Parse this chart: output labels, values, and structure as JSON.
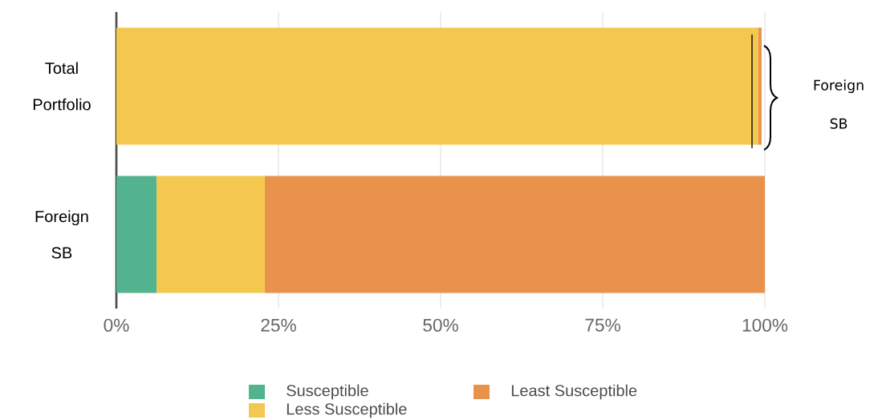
{
  "chart_data": {
    "type": "bar",
    "orientation": "horizontal",
    "stacked": true,
    "categories": [
      "Total Portfolio",
      "Foreign SB"
    ],
    "series": [
      {
        "name": "Susceptible",
        "color": "#52b38e",
        "values": [
          0,
          6.2
        ]
      },
      {
        "name": "Less Susceptible",
        "color": "#f4c84f",
        "values": [
          99.0,
          16.7
        ]
      },
      {
        "name": "Least Susceptible",
        "color": "#e8924c",
        "values": [
          0.5,
          77.1
        ]
      }
    ],
    "xlim": [
      0,
      100
    ],
    "xticks": [
      {
        "value": 0,
        "label": "0%"
      },
      {
        "value": 25,
        "label": "25%"
      },
      {
        "value": 50,
        "label": "50%"
      },
      {
        "value": 75,
        "label": "75%"
      },
      {
        "value": 100,
        "label": "100%"
      }
    ],
    "grid": "x",
    "legend": "bottom",
    "annotations": [
      "Foreign SB"
    ]
  }
}
